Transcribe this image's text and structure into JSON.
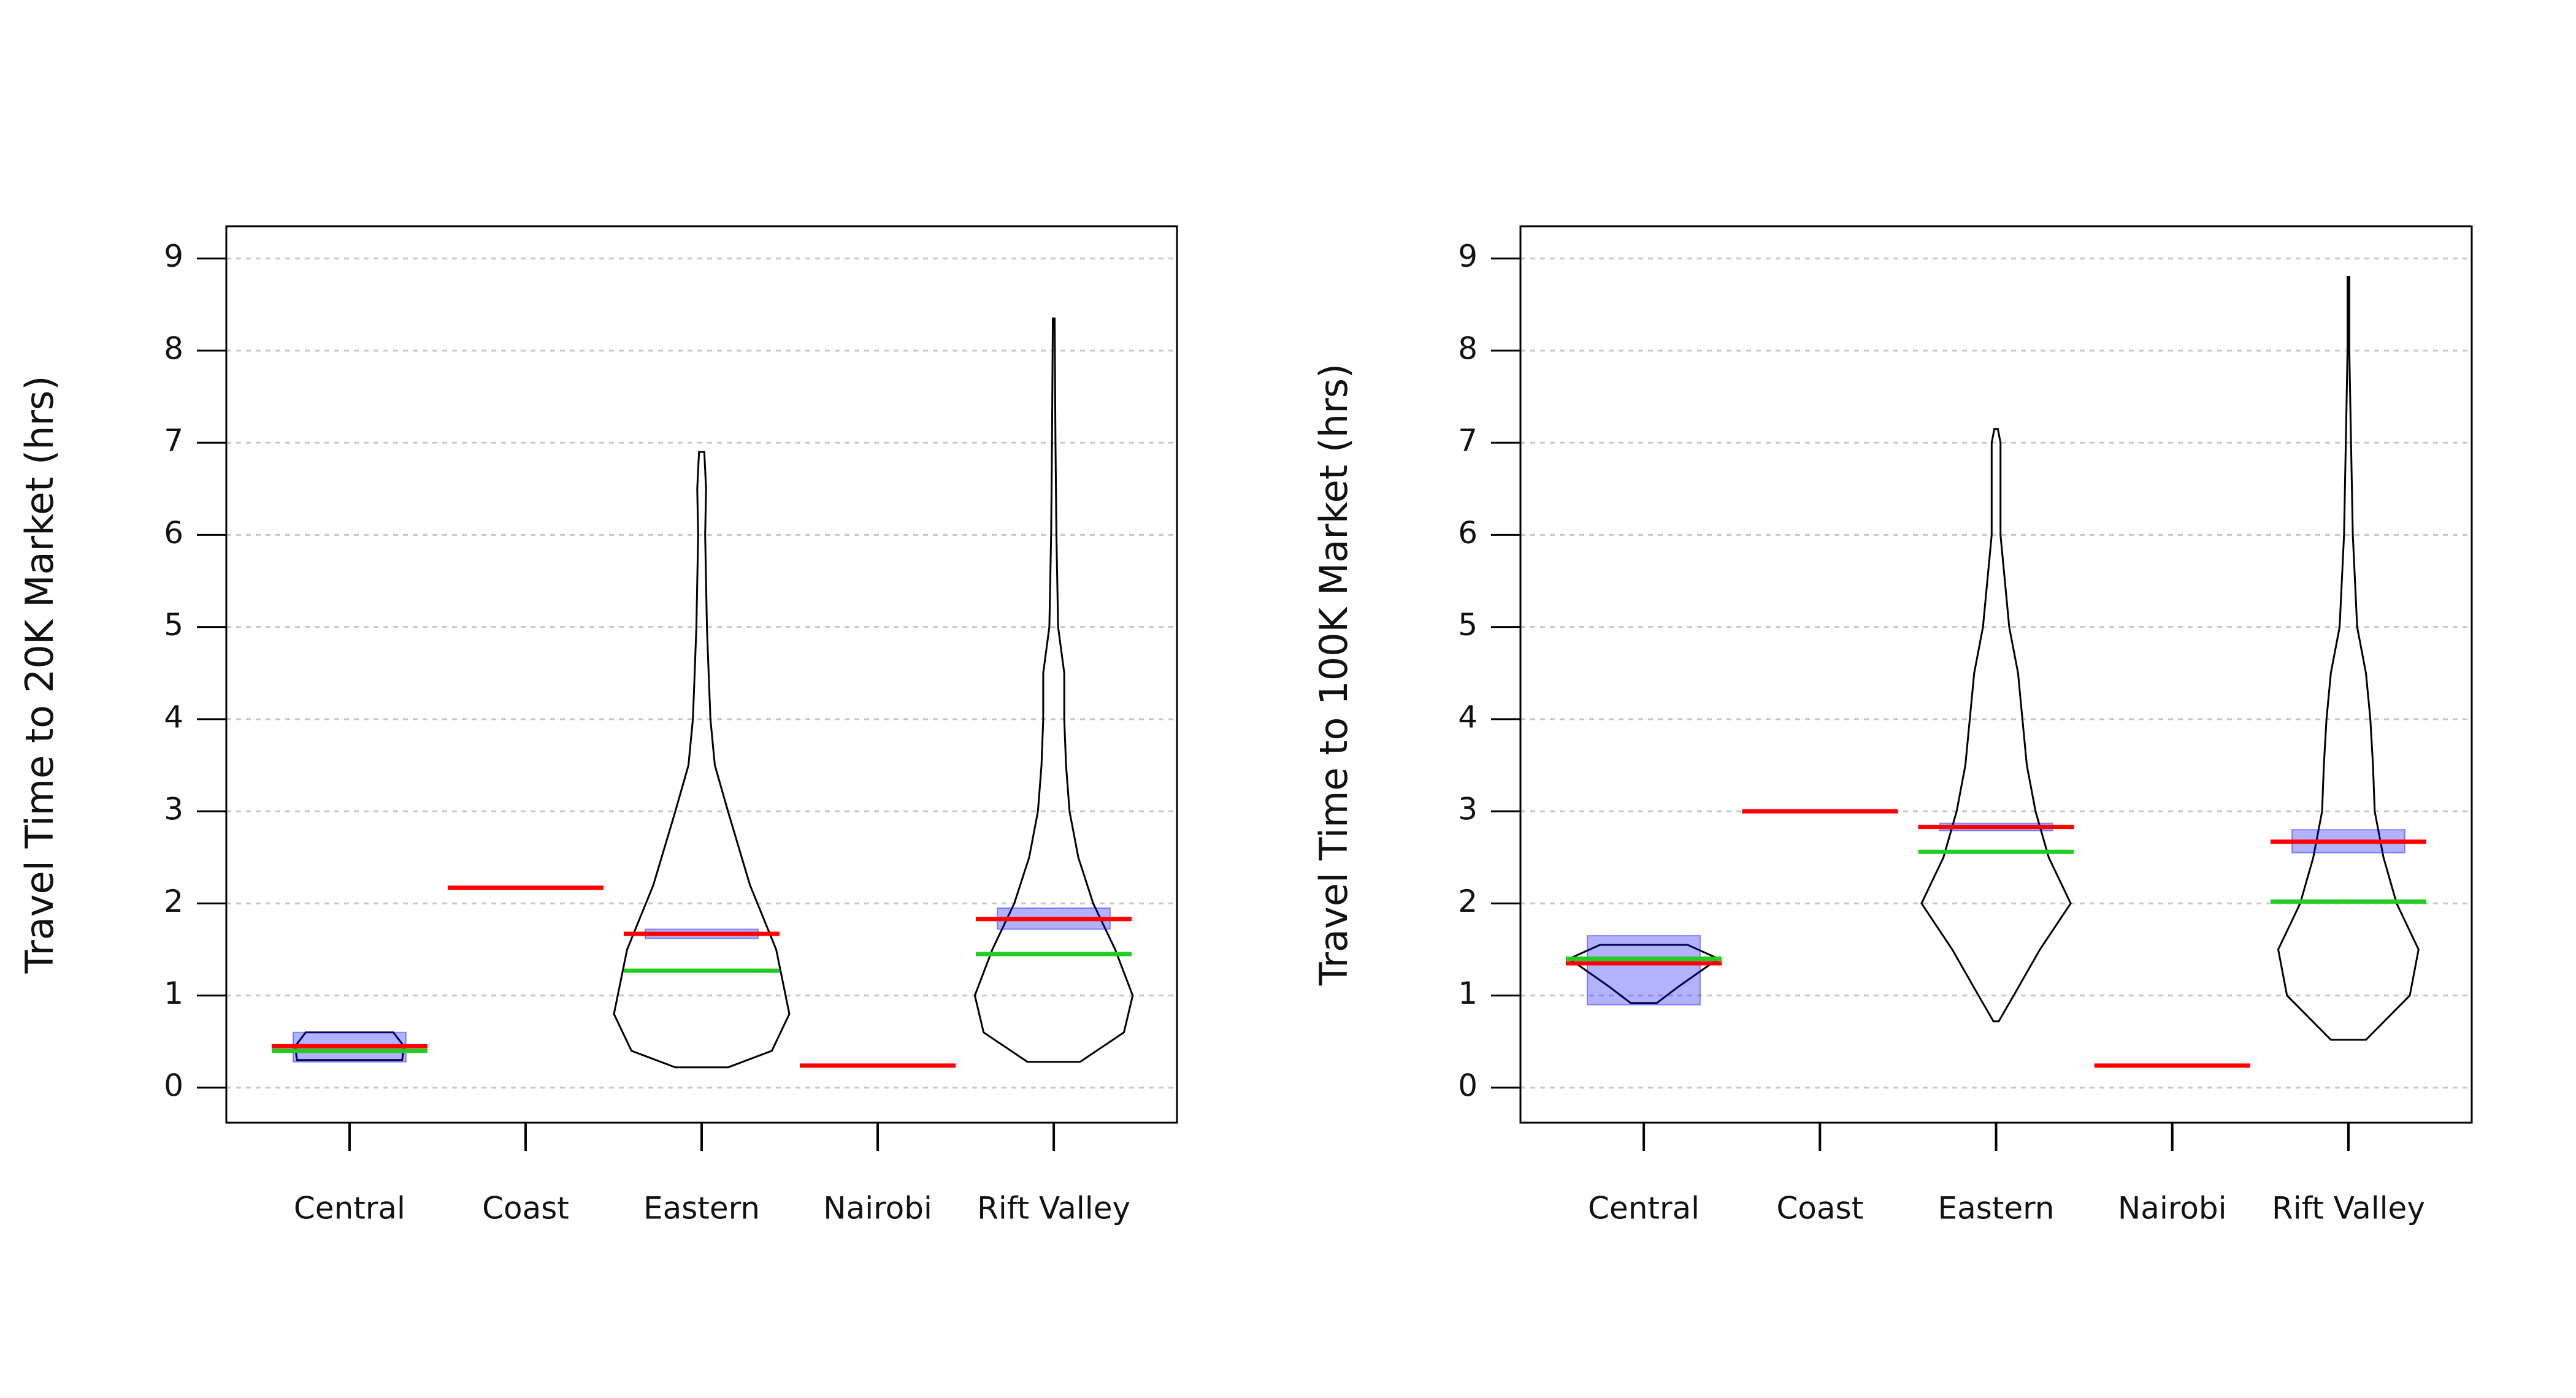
{
  "chart_data": [
    {
      "type": "pirate",
      "y_label": "Travel Time to 20K Market (hrs)",
      "categories": [
        "Central",
        "Coast",
        "Eastern",
        "Nairobi",
        "Rift Valley"
      ],
      "mean": [
        0.45,
        2.17,
        1.67,
        0.24,
        1.83
      ],
      "median": [
        0.4,
        null,
        1.27,
        null,
        1.45
      ],
      "ci_low": [
        0.28,
        null,
        1.62,
        null,
        1.72
      ],
      "ci_high": [
        0.6,
        null,
        1.72,
        null,
        1.95
      ],
      "violins": [
        {
          "y": [
            0.3,
            0.45,
            0.6
          ],
          "width": [
            0.6,
            0.62,
            0.5
          ]
        },
        null,
        {
          "y": [
            0.22,
            0.4,
            0.8,
            1.5,
            2.2,
            3,
            3.5,
            4,
            4.5,
            5,
            6,
            6.5,
            6.9
          ],
          "width": [
            0.3,
            0.8,
            1,
            0.85,
            0.55,
            0.3,
            0.15,
            0.1,
            0.08,
            0.06,
            0.04,
            0.05,
            0.03
          ]
        },
        null,
        {
          "y": [
            0.28,
            0.6,
            1,
            1.5,
            2,
            2.5,
            3,
            3.5,
            4,
            4.5,
            5,
            6,
            7,
            8.35
          ],
          "width": [
            0.3,
            0.8,
            0.9,
            0.7,
            0.45,
            0.28,
            0.18,
            0.14,
            0.12,
            0.12,
            0.05,
            0.03,
            0.02,
            0.01
          ]
        }
      ],
      "colors": {
        "mean": "#ff0000",
        "median": "#22cc22",
        "ci": "#0000ff"
      },
      "ylim": [
        -0.38,
        9.35
      ],
      "yticks": [
        0,
        1,
        2,
        3,
        4,
        5,
        6,
        7,
        8,
        9
      ],
      "grid": true
    },
    {
      "type": "pirate",
      "y_label": "Travel Time to 100K Market (hrs)",
      "categories": [
        "Central",
        "Coast",
        "Eastern",
        "Nairobi",
        "Rift Valley"
      ],
      "mean": [
        1.35,
        3.0,
        2.83,
        0.24,
        2.67
      ],
      "median": [
        1.4,
        null,
        2.56,
        null,
        2.02
      ],
      "ci_low": [
        0.9,
        null,
        2.79,
        null,
        2.55
      ],
      "ci_high": [
        1.65,
        null,
        2.87,
        null,
        2.8
      ],
      "violins": [
        {
          "y": [
            0.92,
            1.1,
            1.4,
            1.55
          ],
          "width": [
            0.15,
            0.4,
            0.85,
            0.5
          ]
        },
        null,
        {
          "y": [
            0.72,
            1,
            1.5,
            2,
            2.5,
            3,
            3.5,
            4,
            4.5,
            5,
            6,
            7,
            7.15
          ],
          "width": [
            0.03,
            0.2,
            0.5,
            0.85,
            0.6,
            0.45,
            0.35,
            0.3,
            0.25,
            0.15,
            0.05,
            0.05,
            0.02
          ]
        },
        null,
        {
          "y": [
            0.52,
            1,
            1.5,
            2,
            2.5,
            3,
            3.5,
            4,
            4.5,
            5,
            6,
            7,
            8,
            8.8
          ],
          "width": [
            0.2,
            0.7,
            0.8,
            0.55,
            0.4,
            0.3,
            0.28,
            0.25,
            0.2,
            0.1,
            0.05,
            0.03,
            0.01,
            0.01
          ]
        }
      ],
      "colors": {
        "mean": "#ff0000",
        "median": "#22cc22",
        "ci": "#0000ff"
      },
      "ylim": [
        -0.38,
        9.35
      ],
      "yticks": [
        0,
        1,
        2,
        3,
        4,
        5,
        6,
        7,
        8,
        9
      ],
      "grid": true
    }
  ]
}
